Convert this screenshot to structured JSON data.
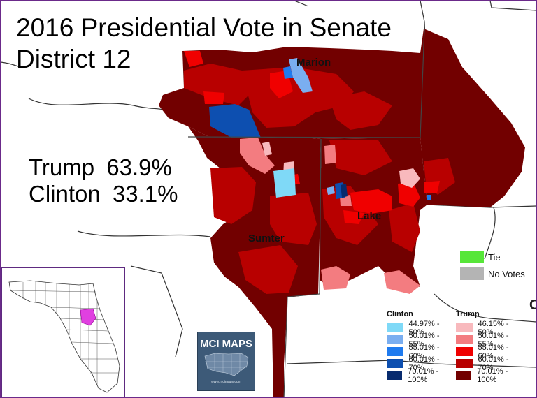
{
  "title": {
    "line1": "2016 Presidential Vote in Senate",
    "line2": "District 12"
  },
  "results": [
    {
      "candidate": "Trump",
      "pct": "63.9%"
    },
    {
      "candidate": "Clinton",
      "pct": "33.1%"
    }
  ],
  "counties": {
    "marion": "Marion",
    "sumter": "Sumter",
    "lake": "Lake"
  },
  "legend_status": [
    {
      "label": "Tie",
      "color": "#57e639"
    },
    {
      "label": "No Votes",
      "color": "#b4b4b4"
    }
  ],
  "legend": {
    "clinton_header": "Clinton",
    "trump_header": "Trump",
    "clinton": [
      {
        "label": "44.97% - 50%",
        "color": "#7fd9f7"
      },
      {
        "label": "50.01% - 55%",
        "color": "#7aaef0"
      },
      {
        "label": "55.01% - 60%",
        "color": "#1f7bef"
      },
      {
        "label": "60.01% - 70%",
        "color": "#0d4fb0"
      },
      {
        "label": "70.01% - 100%",
        "color": "#082b6e"
      }
    ],
    "trump": [
      {
        "label": "46.15% - 50%",
        "color": "#f8b9bd"
      },
      {
        "label": "50.01% - 55%",
        "color": "#f37c80"
      },
      {
        "label": "55.01% - 60%",
        "color": "#f00000"
      },
      {
        "label": "60.01% - 70%",
        "color": "#b80000"
      },
      {
        "label": "70.01% - 100%",
        "color": "#720000"
      }
    ]
  },
  "logo": {
    "brand": "MCI MAPS",
    "url": "www.mcimaps.com"
  },
  "inset_highlight_color": "#e040e0",
  "edge_mark": "C"
}
